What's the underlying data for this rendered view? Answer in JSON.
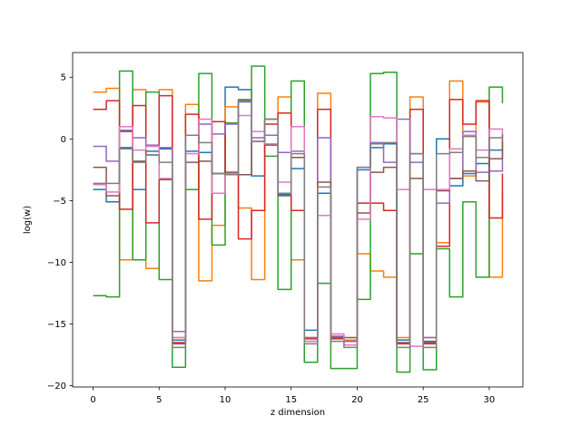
{
  "chart_data": {
    "type": "line",
    "title": "",
    "xlabel": "z dimension",
    "ylabel": "log(w)",
    "xlim": [
      -1.55,
      32.55
    ],
    "ylim": [
      -20.1,
      7.0
    ],
    "xticks": [
      0,
      5,
      10,
      15,
      20,
      25,
      30
    ],
    "yticks": [
      -20,
      -15,
      -10,
      -5,
      0,
      5
    ],
    "step": "post",
    "grid": false,
    "legend": "none",
    "series": [
      {
        "color": "#1f77b4",
        "x": [
          0,
          1,
          2,
          3,
          4,
          5,
          6,
          7,
          8,
          9,
          10,
          11,
          12,
          13,
          14,
          15,
          16,
          17,
          18,
          19,
          20,
          21,
          22,
          23,
          24,
          25,
          26,
          27,
          28,
          29,
          30,
          31
        ],
        "values": [
          -4.1,
          -5.1,
          -0.7,
          -4.1,
          -1.0,
          -0.8,
          -16.3,
          -1.0,
          -1.1,
          -2.8,
          4.2,
          4.0,
          -3.0,
          1.6,
          -4.5,
          -2.4,
          -15.5,
          -4.4,
          -16.0,
          -16.4,
          -2.5,
          -0.7,
          -0.4,
          -16.3,
          -1.2,
          -16.4,
          0.0,
          -3.8,
          -2.8,
          -2.0,
          -0.9,
          -0.8
        ]
      },
      {
        "color": "#ff7f0e",
        "x": [
          0,
          1,
          2,
          3,
          4,
          5,
          6,
          7,
          8,
          9,
          10,
          11,
          12,
          13,
          14,
          15,
          16,
          17,
          18,
          19,
          20,
          21,
          22,
          23,
          24,
          25,
          26,
          27,
          28,
          29,
          30,
          31
        ],
        "values": [
          3.8,
          4.1,
          -9.8,
          4.0,
          -10.5,
          4.0,
          -16.1,
          2.8,
          -11.5,
          -7.0,
          2.6,
          -5.6,
          -11.4,
          1.6,
          3.4,
          -9.8,
          -16.1,
          3.7,
          -16.1,
          -16.3,
          -9.3,
          -10.7,
          -11.2,
          -16.1,
          3.4,
          -16.1,
          -8.4,
          4.7,
          -3.0,
          3.0,
          -11.2,
          -4.2
        ]
      },
      {
        "color": "#2ca02c",
        "x": [
          0,
          1,
          2,
          3,
          4,
          5,
          6,
          7,
          8,
          9,
          10,
          11,
          12,
          13,
          14,
          15,
          16,
          17,
          18,
          19,
          20,
          21,
          22,
          23,
          24,
          25,
          26,
          27,
          28,
          29,
          30,
          31
        ],
        "values": [
          -12.7,
          -12.8,
          5.5,
          -9.8,
          3.8,
          -11.4,
          -18.5,
          -4.1,
          5.3,
          -8.6,
          1.3,
          3.1,
          5.9,
          -1.4,
          -12.2,
          4.7,
          -18.1,
          -11.7,
          -18.6,
          -18.6,
          -13.0,
          5.3,
          5.4,
          -18.9,
          -9.3,
          -18.7,
          -8.9,
          -12.8,
          -5.1,
          -11.2,
          4.2,
          2.9
        ]
      },
      {
        "color": "#d62728",
        "x": [
          0,
          1,
          2,
          3,
          4,
          5,
          6,
          7,
          8,
          9,
          10,
          11,
          12,
          13,
          14,
          15,
          16,
          17,
          18,
          19,
          20,
          21,
          22,
          23,
          24,
          25,
          26,
          27,
          28,
          29,
          30,
          31
        ],
        "values": [
          2.4,
          3.1,
          -5.7,
          2.7,
          -6.8,
          3.5,
          -16.5,
          2.0,
          -6.5,
          1.4,
          -2.7,
          -8.1,
          -5.8,
          1.2,
          2.1,
          -5.8,
          -16.2,
          2.4,
          -16.2,
          -16.4,
          -5.2,
          -5.2,
          -5.8,
          -16.6,
          2.4,
          -16.6,
          -8.7,
          3.2,
          1.2,
          3.1,
          -6.4,
          -2.8
        ]
      },
      {
        "color": "#9467bd",
        "x": [
          0,
          1,
          2,
          3,
          4,
          5,
          6,
          7,
          8,
          9,
          10,
          11,
          12,
          13,
          14,
          15,
          16,
          17,
          18,
          19,
          20,
          21,
          22,
          23,
          24,
          25,
          26,
          27,
          28,
          29,
          30,
          31
        ],
        "values": [
          -0.6,
          -1.8,
          0.7,
          0.1,
          -0.5,
          -0.7,
          -15.6,
          0.3,
          1.2,
          0.4,
          1.2,
          3.0,
          0.1,
          0.3,
          -1.1,
          -1.0,
          -16.1,
          0.1,
          -16.0,
          -16.4,
          -2.3,
          -0.3,
          -1.9,
          1.6,
          -1.9,
          -16.1,
          -5.2,
          -3.2,
          0.6,
          -2.7,
          -2.6,
          -0.2
        ]
      },
      {
        "color": "#8c564b",
        "x": [
          0,
          1,
          2,
          3,
          4,
          5,
          6,
          7,
          8,
          9,
          10,
          11,
          12,
          13,
          14,
          15,
          16,
          17,
          18,
          19,
          20,
          21,
          22,
          23,
          24,
          25,
          26,
          27,
          28,
          29,
          30,
          31
        ],
        "values": [
          -2.3,
          -4.6,
          0.6,
          -1.8,
          -1.3,
          -3.3,
          -16.6,
          -1.9,
          -1.8,
          -2.8,
          -2.7,
          -2.9,
          -0.2,
          -0.5,
          -4.6,
          -1.5,
          -16.4,
          -3.5,
          -16.1,
          -16.1,
          -6.0,
          -2.7,
          -2.3,
          -16.5,
          -3.2,
          -16.5,
          -4.2,
          -3.2,
          -2.6,
          -3.4,
          -1.6,
          0.3
        ]
      },
      {
        "color": "#e377c2",
        "x": [
          0,
          1,
          2,
          3,
          4,
          5,
          6,
          7,
          8,
          9,
          10,
          11,
          12,
          13,
          14,
          15,
          16,
          17,
          18,
          19,
          20,
          21,
          22,
          23,
          24,
          25,
          26,
          27,
          28,
          29,
          30,
          31
        ],
        "values": [
          -3.7,
          -4.3,
          1.0,
          -0.9,
          -0.6,
          -3.2,
          -16.1,
          -1.2,
          1.6,
          -4.4,
          -2.8,
          1.9,
          0.6,
          -0.4,
          -3.5,
          1.0,
          -16.4,
          -6.2,
          -15.8,
          -16.7,
          -6.5,
          1.8,
          1.7,
          -4.1,
          -16.8,
          -4.1,
          -4.1,
          -0.8,
          0.3,
          -0.9,
          0.8,
          0.1
        ]
      },
      {
        "color": "#7f7f7f",
        "x": [
          0,
          1,
          2,
          3,
          4,
          5,
          6,
          7,
          8,
          9,
          10,
          11,
          12,
          13,
          14,
          15,
          16,
          17,
          18,
          19,
          20,
          21,
          22,
          23,
          24,
          25,
          26,
          27,
          28,
          29,
          30,
          31
        ],
        "values": [
          -3.6,
          -3.6,
          -0.8,
          -1.9,
          -1.3,
          -1.9,
          -16.9,
          0.3,
          -0.3,
          -2.8,
          -2.9,
          3.2,
          -0.2,
          1.6,
          -4.4,
          -1.2,
          -16.6,
          -3.9,
          -16.4,
          -16.9,
          -2.3,
          -0.4,
          -0.3,
          -16.9,
          -1.2,
          -16.9,
          -1.2,
          -1.1,
          0.2,
          -1.5,
          0.1,
          0.4
        ]
      }
    ]
  }
}
